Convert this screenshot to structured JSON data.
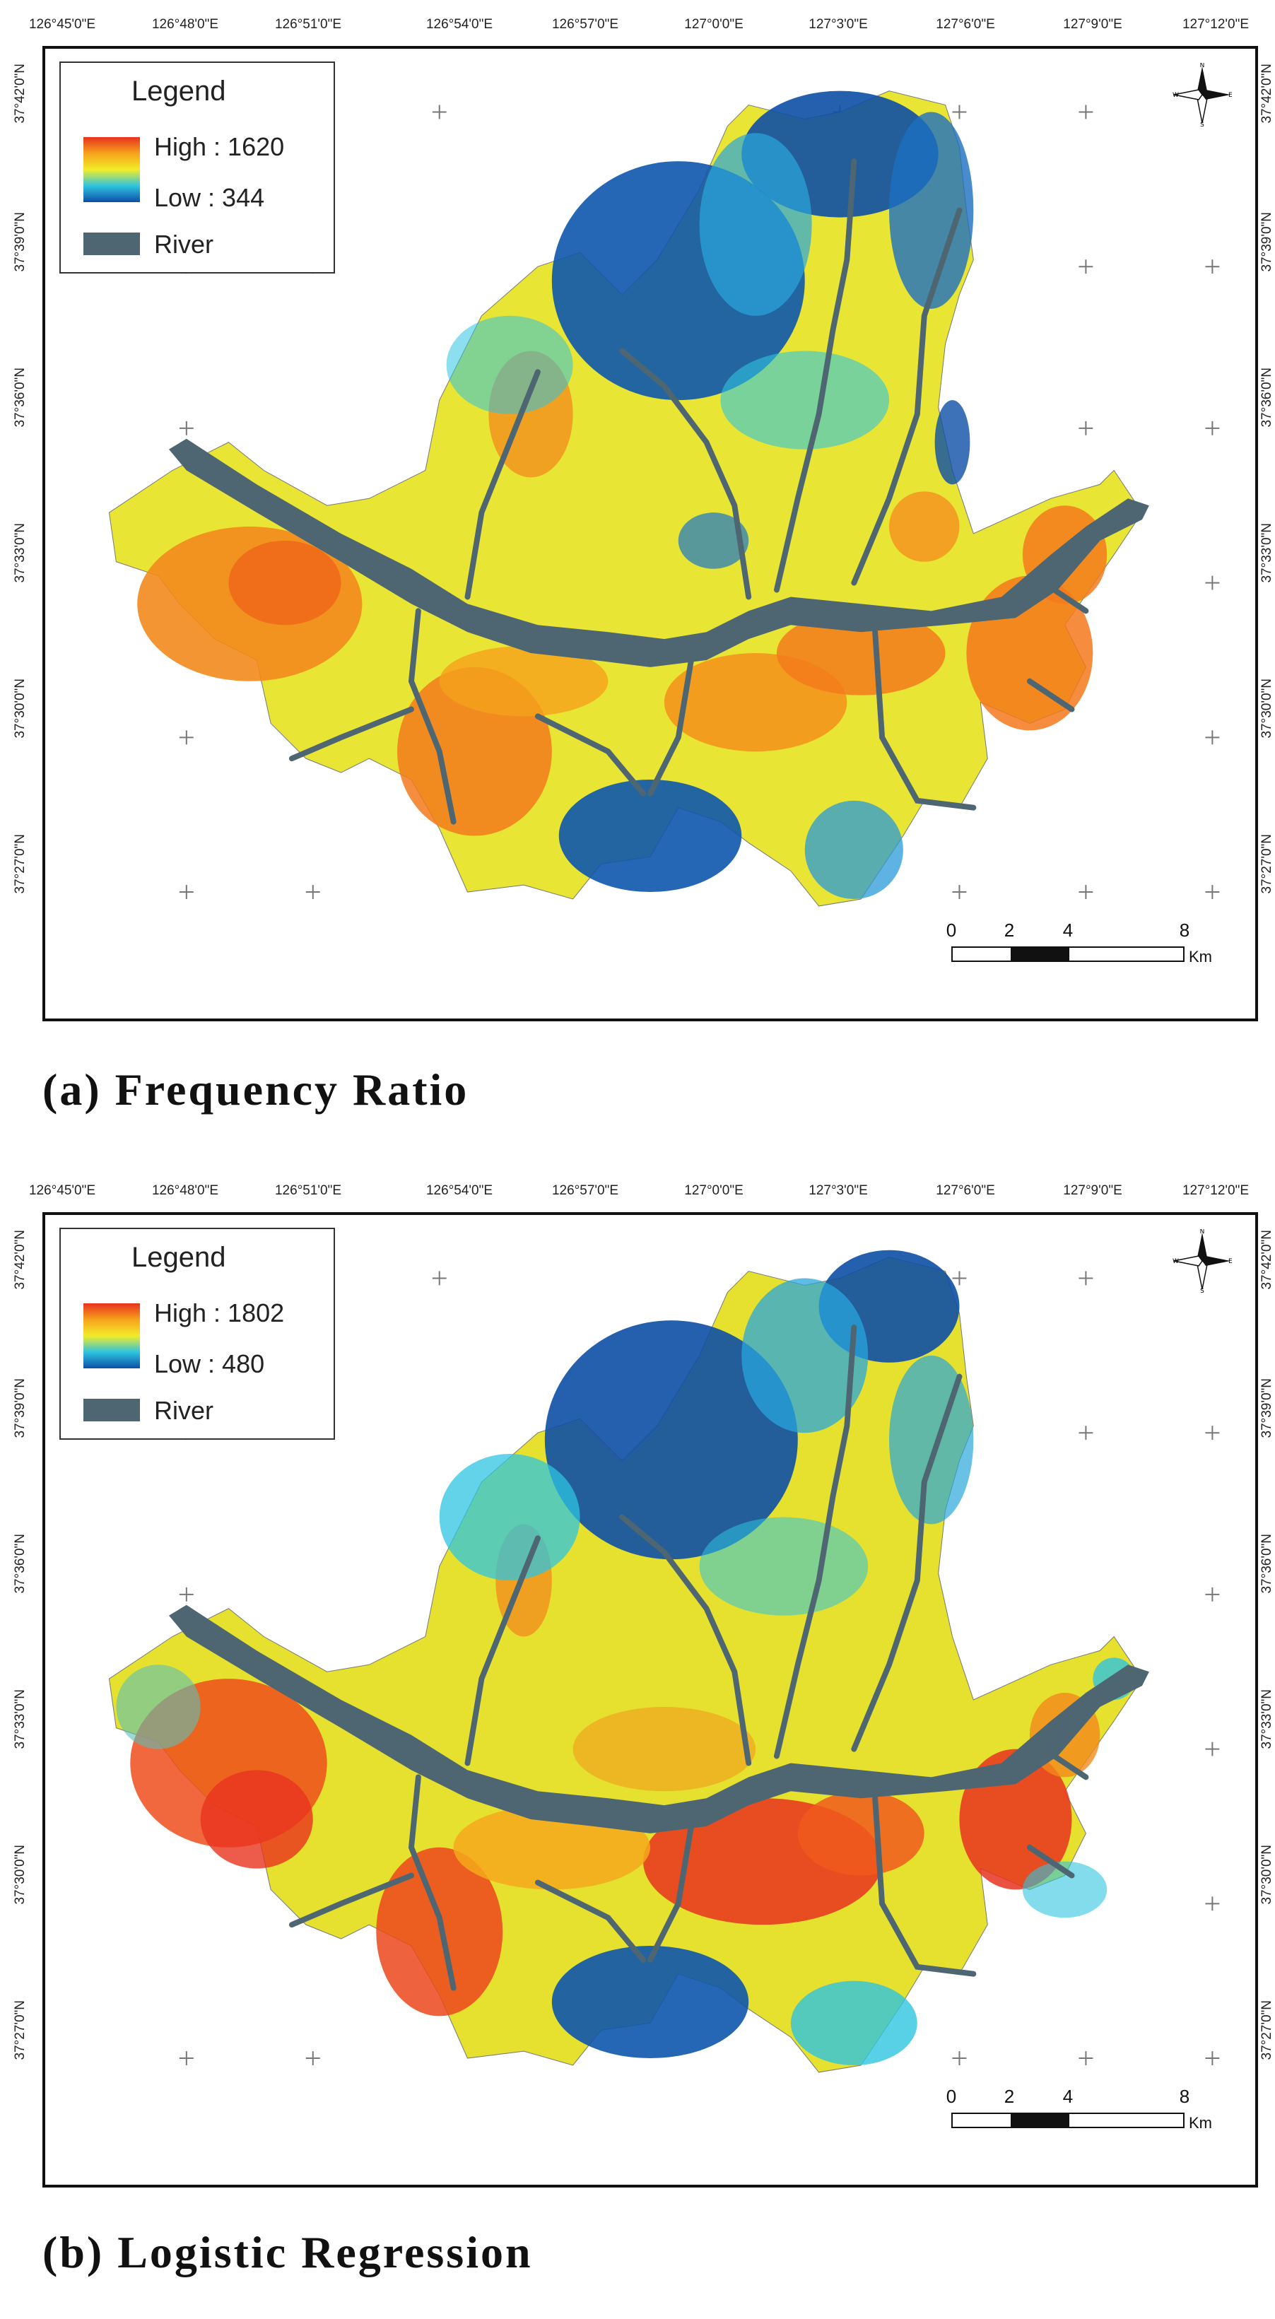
{
  "longitudes": [
    "126°45'0\"E",
    "126°48'0\"E",
    "126°51'0\"E",
    "126°54'0\"E",
    "126°57'0\"E",
    "127°0'0\"E",
    "127°3'0\"E",
    "127°6'0\"E",
    "127°9'0\"E",
    "127°12'0\"E"
  ],
  "latitudes": [
    "37°42'0\"N",
    "37°39'0\"N",
    "37°36'0\"N",
    "37°33'0\"N",
    "37°30'0\"N",
    "37°27'0\"N"
  ],
  "colors": {
    "high": "#e8321e",
    "mid_high": "#f7a21c",
    "mid": "#f2ec28",
    "mid_low": "#2ec4e0",
    "low": "#0d4fa6",
    "river": "#4d6672"
  },
  "scale": {
    "ticks": [
      "0",
      "2",
      "4",
      "8"
    ],
    "unit": "Km"
  },
  "compass": {
    "n": "N",
    "s": "S",
    "e": "E",
    "w": "W"
  },
  "panels": [
    {
      "caption": "(a) Frequency Ratio",
      "legend": {
        "title": "Legend",
        "high": "High : 1620",
        "low": "Low : 344",
        "river": "River"
      }
    },
    {
      "caption": "(b) Logistic Regression",
      "legend": {
        "title": "Legend",
        "high": "High : 1802",
        "low": "Low : 480",
        "river": "River"
      }
    }
  ]
}
